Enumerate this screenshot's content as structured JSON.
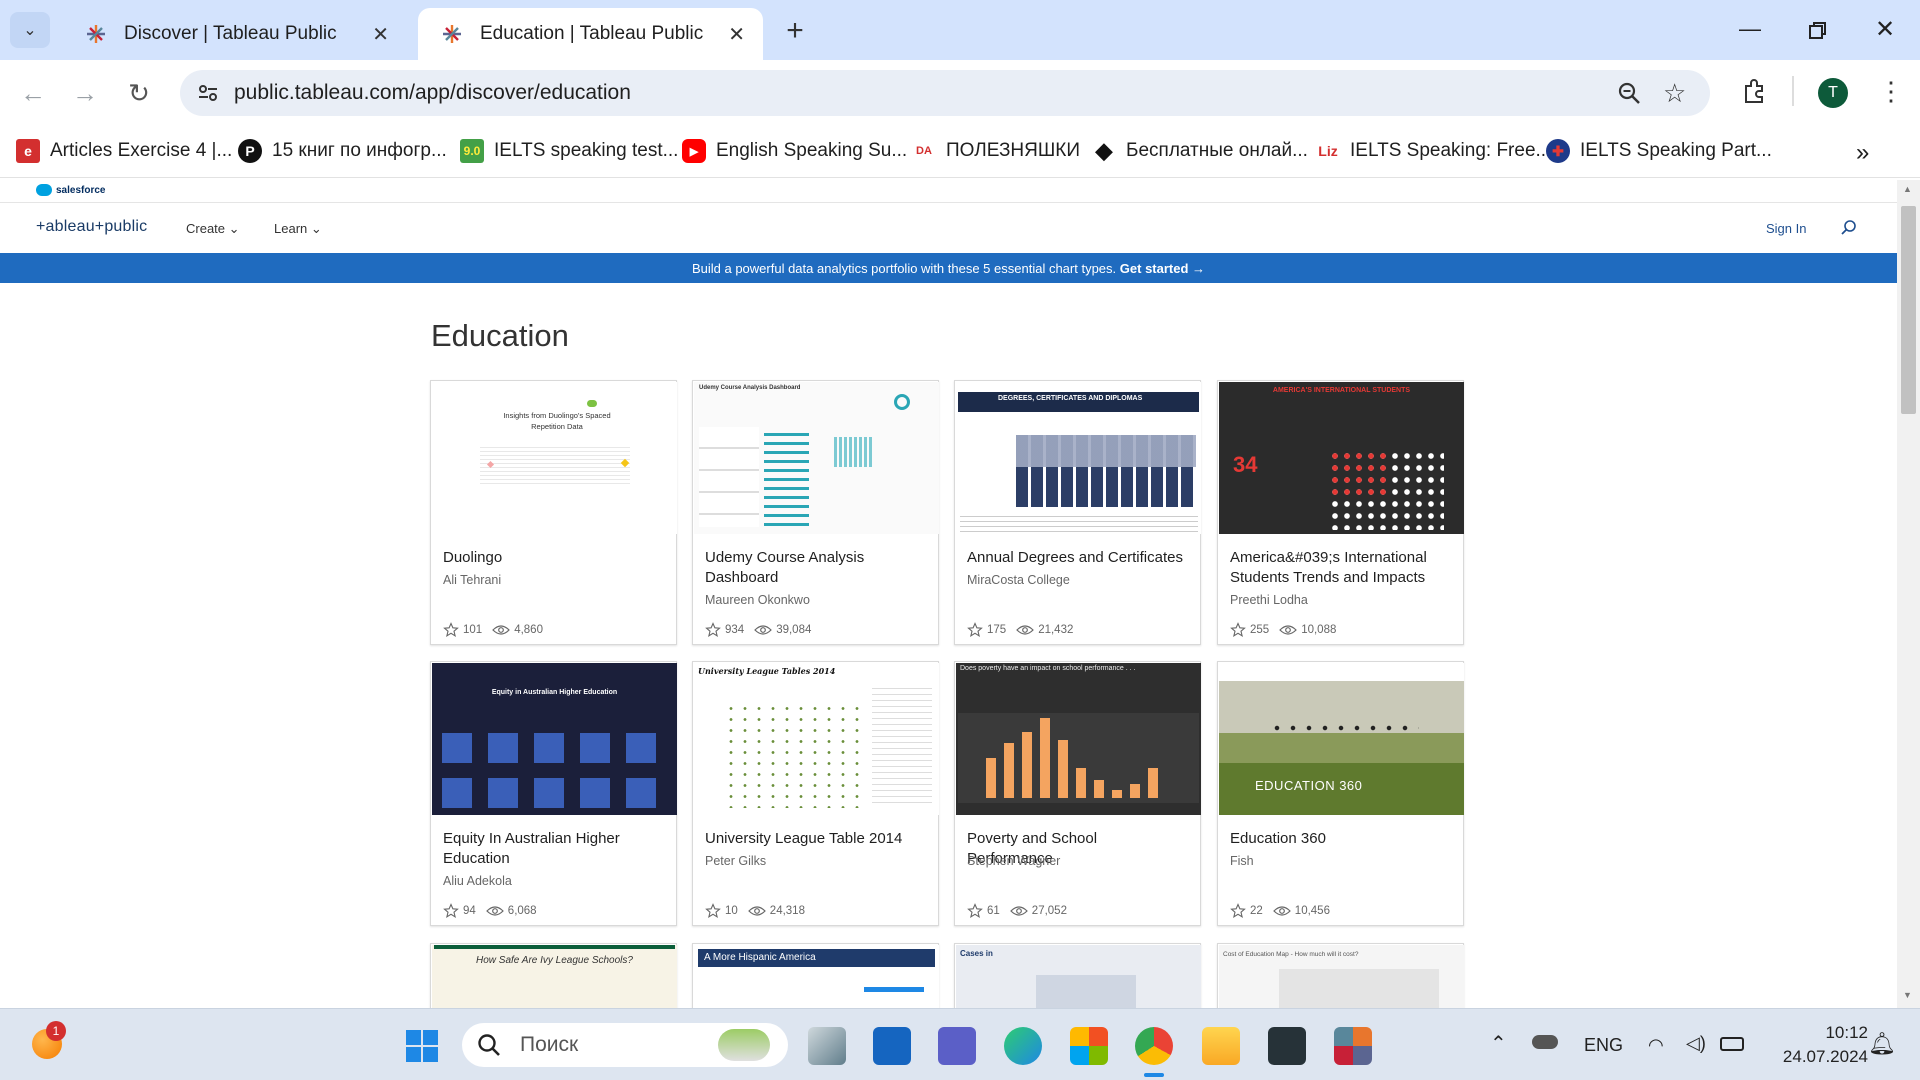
{
  "browser": {
    "tabs": [
      {
        "title": "Discover | Tableau Public",
        "active": false
      },
      {
        "title": "Education | Tableau Public",
        "active": true
      }
    ],
    "new_tab_label": "+",
    "url": "public.tableau.com/app/discover/education",
    "profile_initial": "T",
    "bookmarks": [
      {
        "label": "Articles Exercise 4 |...",
        "icon_text": "e",
        "color": "#d32f2f"
      },
      {
        "label": "15 книг по инфогр...",
        "icon_text": "P",
        "color": "#111111"
      },
      {
        "label": "IELTS speaking test...",
        "icon_text": "9.0",
        "color": "#43a047"
      },
      {
        "label": "English Speaking Su...",
        "icon_text": "▶",
        "color": "#ff0000"
      },
      {
        "label": "ПОЛЕЗНЯШКИ",
        "icon_text": "DA",
        "color": "#d32f2f"
      },
      {
        "label": "Бесплатные онлай...",
        "icon_text": "◆",
        "color": "#111111"
      },
      {
        "label": "IELTS Speaking: Free...",
        "icon_text": "Liz",
        "color": "#d32f2f"
      },
      {
        "label": "IELTS Speaking Part...",
        "icon_text": "✚",
        "color": "#1e3a8a"
      }
    ],
    "bookmarks_more": "»"
  },
  "site": {
    "salesforce_label": "salesforce",
    "logo": "+ableau+public",
    "nav": [
      {
        "label": "Create"
      },
      {
        "label": "Learn"
      }
    ],
    "sign_in": "Sign In",
    "banner_text": "Build a powerful data analytics portfolio with these 5 essential chart types.",
    "banner_cta": "Get started →",
    "page_title": "Education"
  },
  "cards": [
    {
      "title": "Duolingo",
      "author": "Ali Tehrani",
      "favorites": "101",
      "views": "4,860",
      "thumb_text": "Insights from Duolingo's Spaced Repetition Data"
    },
    {
      "title": "Udemy Course Analysis Dashboard",
      "author": "Maureen Okonkwo",
      "favorites": "934",
      "views": "39,084",
      "thumb_text": "Udemy Course Analysis Dashboard"
    },
    {
      "title": "Annual Degrees and Certificates",
      "author": "MiraCosta College",
      "favorites": "175",
      "views": "21,432",
      "thumb_text": "DEGREES, CERTIFICATES AND DIPLOMAS"
    },
    {
      "title": "America&#039;s International Students Trends and Impacts",
      "author": "Preethi Lodha",
      "favorites": "255",
      "views": "10,088",
      "thumb_text": "AMERICA'S INTERNATIONAL STUDENTS"
    },
    {
      "title": "Equity In Australian Higher Education",
      "author": "Aliu Adekola",
      "favorites": "94",
      "views": "6,068",
      "thumb_text": "Equity in Australian Higher Education"
    },
    {
      "title": "University League Table 2014",
      "author": "Peter Gilks",
      "favorites": "10",
      "views": "24,318",
      "thumb_text": "University League Tables 2014"
    },
    {
      "title": "Poverty and School Performance",
      "author": "Stephen Wagner",
      "favorites": "61",
      "views": "27,052",
      "thumb_text": "Does poverty have an impact on school performance . . ."
    },
    {
      "title": "Education 360",
      "author": "Fish",
      "favorites": "22",
      "views": "10,456",
      "thumb_text": "EDUCATION 360"
    }
  ],
  "partial_cards": [
    {
      "thumb_text": "How Safe Are Ivy League Schools?"
    },
    {
      "thumb_text": "A More Hispanic America"
    },
    {
      "thumb_text": "Cases in"
    },
    {
      "thumb_text": "Cost of Education Map - How much will it cost?"
    }
  ],
  "taskbar": {
    "search_placeholder": "Поиск",
    "notification_count": "1",
    "language": "ENG",
    "time": "10:12",
    "date": "24.07.2024"
  }
}
